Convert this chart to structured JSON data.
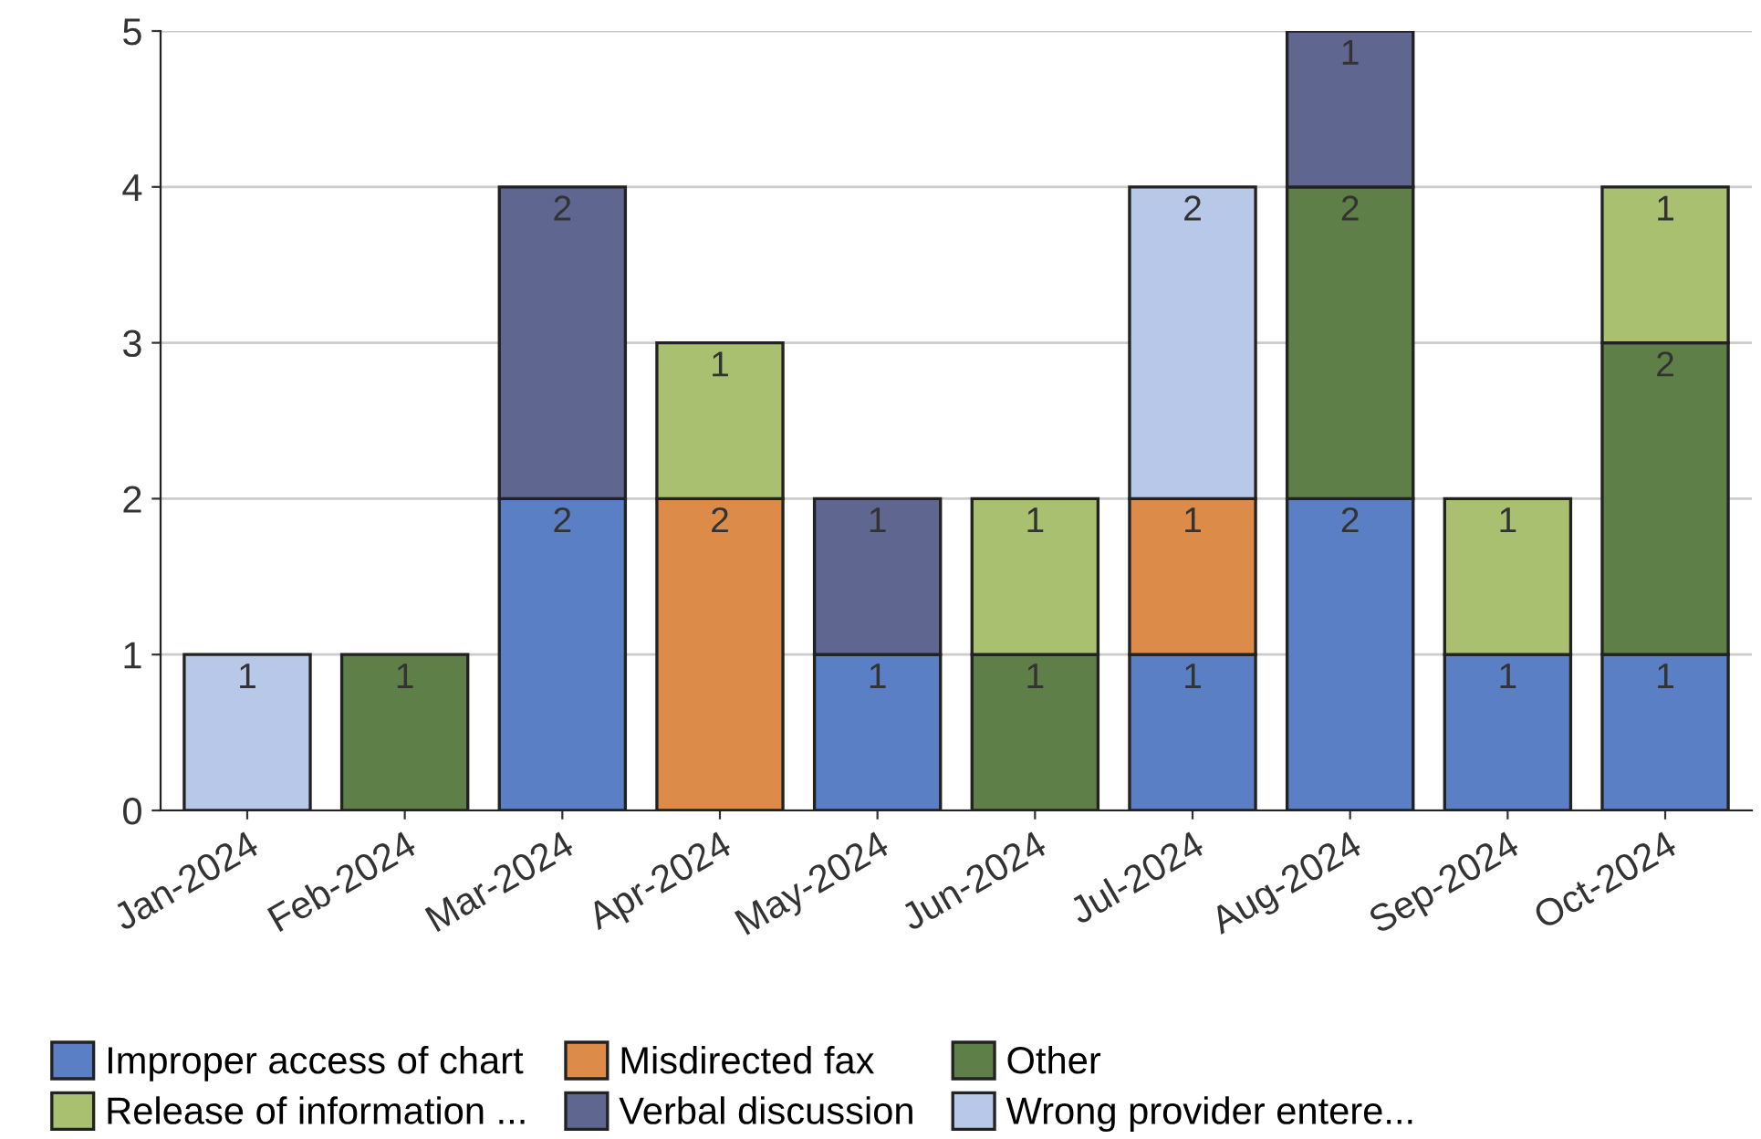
{
  "chart_data": {
    "type": "bar",
    "stacked": true,
    "data_labels": true,
    "categories": [
      "Jan-2024",
      "Feb-2024",
      "Mar-2024",
      "Apr-2024",
      "May-2024",
      "Jun-2024",
      "Jul-2024",
      "Aug-2024",
      "Sep-2024",
      "Oct-2024"
    ],
    "series": [
      {
        "name": "Improper access of chart",
        "color": "#5b7fc4",
        "values": [
          null,
          null,
          2,
          null,
          1,
          null,
          1,
          2,
          1,
          1
        ]
      },
      {
        "name": "Misdirected fax",
        "color": "#dc8c48",
        "values": [
          null,
          null,
          null,
          2,
          null,
          null,
          1,
          null,
          null,
          null
        ]
      },
      {
        "name": "Other",
        "color": "#5f7f48",
        "values": [
          null,
          1,
          null,
          null,
          null,
          1,
          null,
          2,
          null,
          2
        ]
      },
      {
        "name": "Release of information ...",
        "color": "#a8c070",
        "values": [
          null,
          null,
          null,
          1,
          null,
          1,
          null,
          null,
          1,
          1
        ]
      },
      {
        "name": "Verbal discussion",
        "color": "#5f6690",
        "values": [
          null,
          null,
          2,
          null,
          1,
          null,
          null,
          1,
          null,
          null
        ]
      },
      {
        "name": "Wrong provider entere...",
        "color": "#b8c8e8",
        "values": [
          1,
          null,
          null,
          null,
          null,
          null,
          2,
          null,
          null,
          null
        ]
      }
    ],
    "ylim": [
      0,
      5
    ],
    "yticks": [
      0,
      1,
      2,
      3,
      4,
      5
    ],
    "grid": "y",
    "legend": "bottom"
  }
}
